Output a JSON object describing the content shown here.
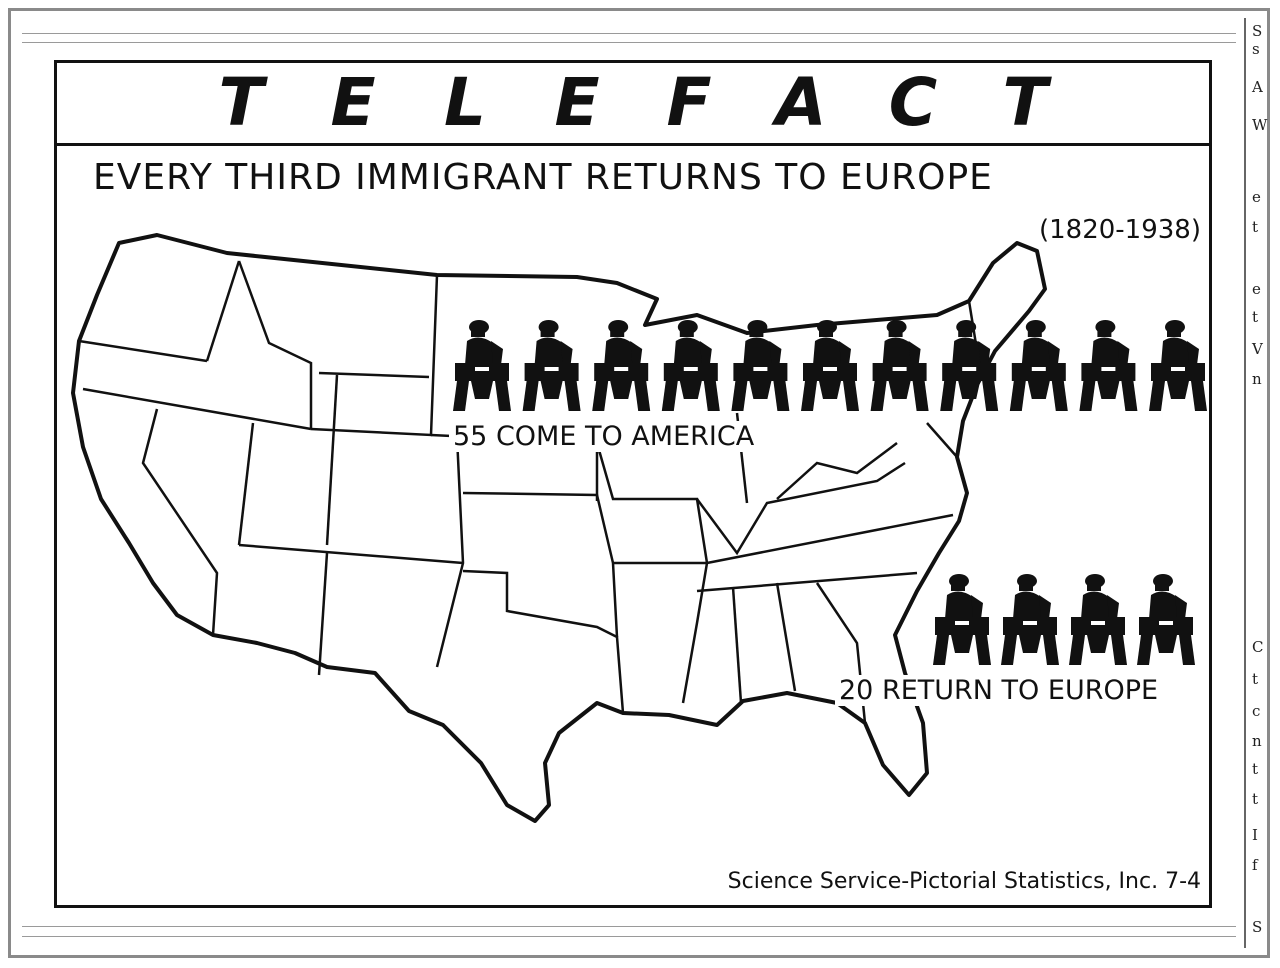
{
  "header": {
    "title_letters": [
      "T",
      "E",
      "L",
      "E",
      "F",
      "A",
      "C",
      "T"
    ]
  },
  "chart": {
    "headline": "EVERY THIRD IMMIGRANT RETURNS TO EUROPE",
    "period": "(1820-1938)",
    "credit": "Science Service-Pictorial Statistics, Inc.  7-4"
  },
  "chart_data": {
    "type": "bar",
    "title": "EVERY THIRD IMMIGRANT RETURNS TO EUROPE",
    "subtitle": "(1820-1938)",
    "categories": [
      "55 COME TO AMERICA",
      "20 RETURN TO EUROPE"
    ],
    "values": [
      55,
      20
    ],
    "icons_shown": [
      11,
      4
    ],
    "units_per_icon": 5,
    "icon": "immigrant-figure-icon",
    "background": "map of the United States",
    "source": "Science Service-Pictorial Statistics, Inc.  7-4"
  },
  "right_strip_chars": [
    "S",
    "s",
    "A",
    "W",
    "e",
    "t",
    "e",
    "t",
    "V",
    "n",
    "C",
    "t",
    "c",
    "n",
    "t",
    "t",
    "I",
    "f",
    "S"
  ],
  "colors": {
    "ink": "#111111",
    "paper": "#ffffff",
    "frame": "#8a8a8a"
  }
}
